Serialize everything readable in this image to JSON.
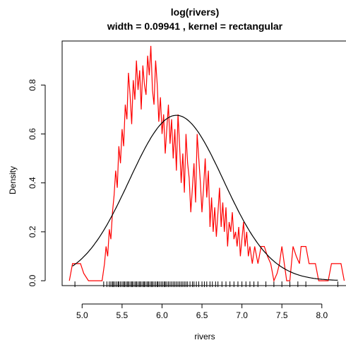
{
  "chart_data": {
    "type": "line",
    "title": "log(rivers)",
    "subtitle": "width = 0.09941 , kernel = rectangular",
    "xlabel": "rivers",
    "ylabel": "Density",
    "xlim": [
      4.75,
      8.32
    ],
    "ylim": [
      -0.02,
      0.98
    ],
    "xticks": [
      5.0,
      5.5,
      6.0,
      6.5,
      7.0,
      7.5,
      8.0
    ],
    "xtick_labels": [
      "5.0",
      "5.5",
      "6.0",
      "6.5",
      "7.0",
      "7.5",
      "8.0"
    ],
    "yticks": [
      0.0,
      0.2,
      0.4,
      0.6,
      0.8
    ],
    "ytick_labels": [
      "0.0",
      "0.2",
      "0.4",
      "0.6",
      "0.8"
    ],
    "grid": false,
    "series": [
      {
        "color": "#ff0000",
        "kind": "kernel-density",
        "x": [
          4.84,
          4.88,
          4.92,
          4.98,
          5.02,
          5.08,
          5.14,
          5.2,
          5.25,
          5.28,
          5.3,
          5.32,
          5.34,
          5.36,
          5.38,
          5.4,
          5.42,
          5.44,
          5.46,
          5.48,
          5.5,
          5.52,
          5.54,
          5.56,
          5.58,
          5.6,
          5.62,
          5.64,
          5.66,
          5.68,
          5.7,
          5.72,
          5.74,
          5.76,
          5.78,
          5.8,
          5.82,
          5.84,
          5.86,
          5.88,
          5.9,
          5.92,
          5.94,
          5.96,
          5.98,
          6.0,
          6.02,
          6.04,
          6.06,
          6.08,
          6.1,
          6.12,
          6.14,
          6.16,
          6.18,
          6.2,
          6.22,
          6.24,
          6.26,
          6.28,
          6.3,
          6.32,
          6.34,
          6.36,
          6.38,
          6.4,
          6.42,
          6.44,
          6.46,
          6.48,
          6.5,
          6.52,
          6.54,
          6.56,
          6.58,
          6.6,
          6.62,
          6.64,
          6.66,
          6.68,
          6.7,
          6.72,
          6.74,
          6.76,
          6.78,
          6.8,
          6.82,
          6.84,
          6.86,
          6.88,
          6.9,
          6.92,
          6.94,
          6.96,
          6.98,
          7.0,
          7.02,
          7.04,
          7.06,
          7.08,
          7.1,
          7.13,
          7.16,
          7.2,
          7.24,
          7.28,
          7.32,
          7.36,
          7.4,
          7.44,
          7.47,
          7.5,
          7.53,
          7.56,
          7.6,
          7.64,
          7.68,
          7.72,
          7.74,
          7.76,
          7.8,
          7.84,
          7.88,
          7.92,
          7.96,
          8.0,
          8.04,
          8.08,
          8.12,
          8.16,
          8.2,
          8.24,
          8.28
        ],
        "y": [
          0.0,
          0.07,
          0.07,
          0.07,
          0.03,
          0.0,
          0.0,
          0.0,
          0.0,
          0.07,
          0.14,
          0.1,
          0.21,
          0.17,
          0.28,
          0.35,
          0.45,
          0.38,
          0.55,
          0.48,
          0.62,
          0.55,
          0.72,
          0.66,
          0.85,
          0.76,
          0.64,
          0.82,
          0.74,
          0.9,
          0.78,
          0.86,
          0.7,
          0.88,
          0.8,
          0.76,
          0.92,
          0.84,
          0.96,
          0.78,
          0.72,
          0.9,
          0.8,
          0.65,
          0.75,
          0.6,
          0.68,
          0.52,
          0.62,
          0.72,
          0.56,
          0.66,
          0.5,
          0.62,
          0.45,
          0.68,
          0.55,
          0.4,
          0.52,
          0.36,
          0.6,
          0.48,
          0.42,
          0.28,
          0.38,
          0.48,
          0.32,
          0.6,
          0.5,
          0.4,
          0.28,
          0.38,
          0.5,
          0.34,
          0.45,
          0.22,
          0.34,
          0.2,
          0.3,
          0.18,
          0.28,
          0.38,
          0.22,
          0.32,
          0.2,
          0.3,
          0.14,
          0.24,
          0.2,
          0.28,
          0.17,
          0.2,
          0.14,
          0.22,
          0.1,
          0.17,
          0.24,
          0.14,
          0.2,
          0.1,
          0.14,
          0.07,
          0.14,
          0.07,
          0.14,
          0.14,
          0.1,
          0.07,
          0.0,
          0.03,
          0.07,
          0.14,
          0.07,
          0.0,
          0.0,
          0.14,
          0.1,
          0.07,
          0.14,
          0.14,
          0.14,
          0.07,
          0.07,
          0.07,
          0.0,
          0.0,
          0.0,
          0.0,
          0.07,
          0.07,
          0.07,
          0.07,
          0.0
        ]
      },
      {
        "color": "#000000",
        "kind": "normal-density",
        "mean": 6.18,
        "sd": 0.59,
        "x_range": [
          4.88,
          8.2
        ]
      }
    ],
    "rug": [
      4.91,
      5.27,
      5.31,
      5.34,
      5.36,
      5.38,
      5.39,
      5.41,
      5.43,
      5.45,
      5.46,
      5.48,
      5.5,
      5.52,
      5.53,
      5.55,
      5.57,
      5.58,
      5.6,
      5.62,
      5.63,
      5.65,
      5.67,
      5.68,
      5.7,
      5.72,
      5.73,
      5.75,
      5.77,
      5.78,
      5.8,
      5.82,
      5.83,
      5.85,
      5.87,
      5.88,
      5.9,
      5.92,
      5.94,
      5.95,
      5.97,
      5.99,
      6.01,
      6.03,
      6.04,
      6.06,
      6.08,
      6.1,
      6.12,
      6.14,
      6.16,
      6.18,
      6.2,
      6.22,
      6.24,
      6.26,
      6.28,
      6.3,
      6.32,
      6.35,
      6.38,
      6.4,
      6.43,
      6.46,
      6.5,
      6.53,
      6.56,
      6.6,
      6.63,
      6.67,
      6.7,
      6.75,
      6.8,
      6.85,
      6.9,
      6.95,
      7.0,
      7.05,
      7.1,
      7.15,
      7.2,
      7.3,
      7.4,
      7.5,
      7.6,
      7.7,
      7.8,
      8.2
    ]
  }
}
